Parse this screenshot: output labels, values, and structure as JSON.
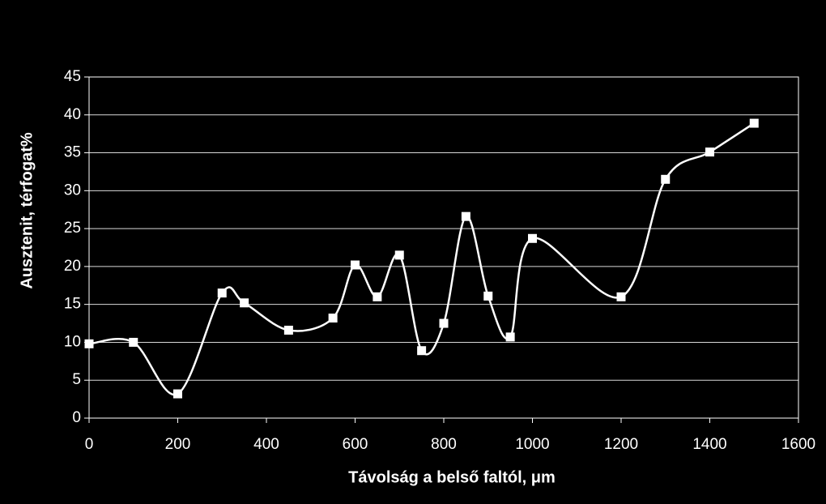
{
  "chart_data": {
    "type": "line",
    "x_label": "Távolság a belső faltól, μm",
    "y_label": "Ausztenit, térfogat%",
    "x": [
      0,
      100,
      200,
      300,
      350,
      450,
      550,
      600,
      650,
      700,
      750,
      800,
      850,
      900,
      950,
      1000,
      1200,
      1300,
      1400,
      1500
    ],
    "series": [
      {
        "color": "#ffffff",
        "values": [
          9.8,
          10.0,
          3.2,
          16.5,
          15.2,
          11.6,
          13.2,
          20.2,
          16.0,
          21.5,
          8.9,
          12.5,
          26.6,
          16.1,
          10.7,
          23.7,
          16.0,
          31.5,
          35.1,
          38.9
        ]
      }
    ],
    "xlim": [
      0,
      1600
    ],
    "xticks": [
      0,
      200,
      400,
      600,
      800,
      1000,
      1200,
      1400,
      1600
    ],
    "ylim": [
      0,
      45
    ],
    "yticks": [
      0,
      5,
      10,
      15,
      20,
      25,
      30,
      35,
      40,
      45
    ],
    "grid": true,
    "smooth": true
  }
}
